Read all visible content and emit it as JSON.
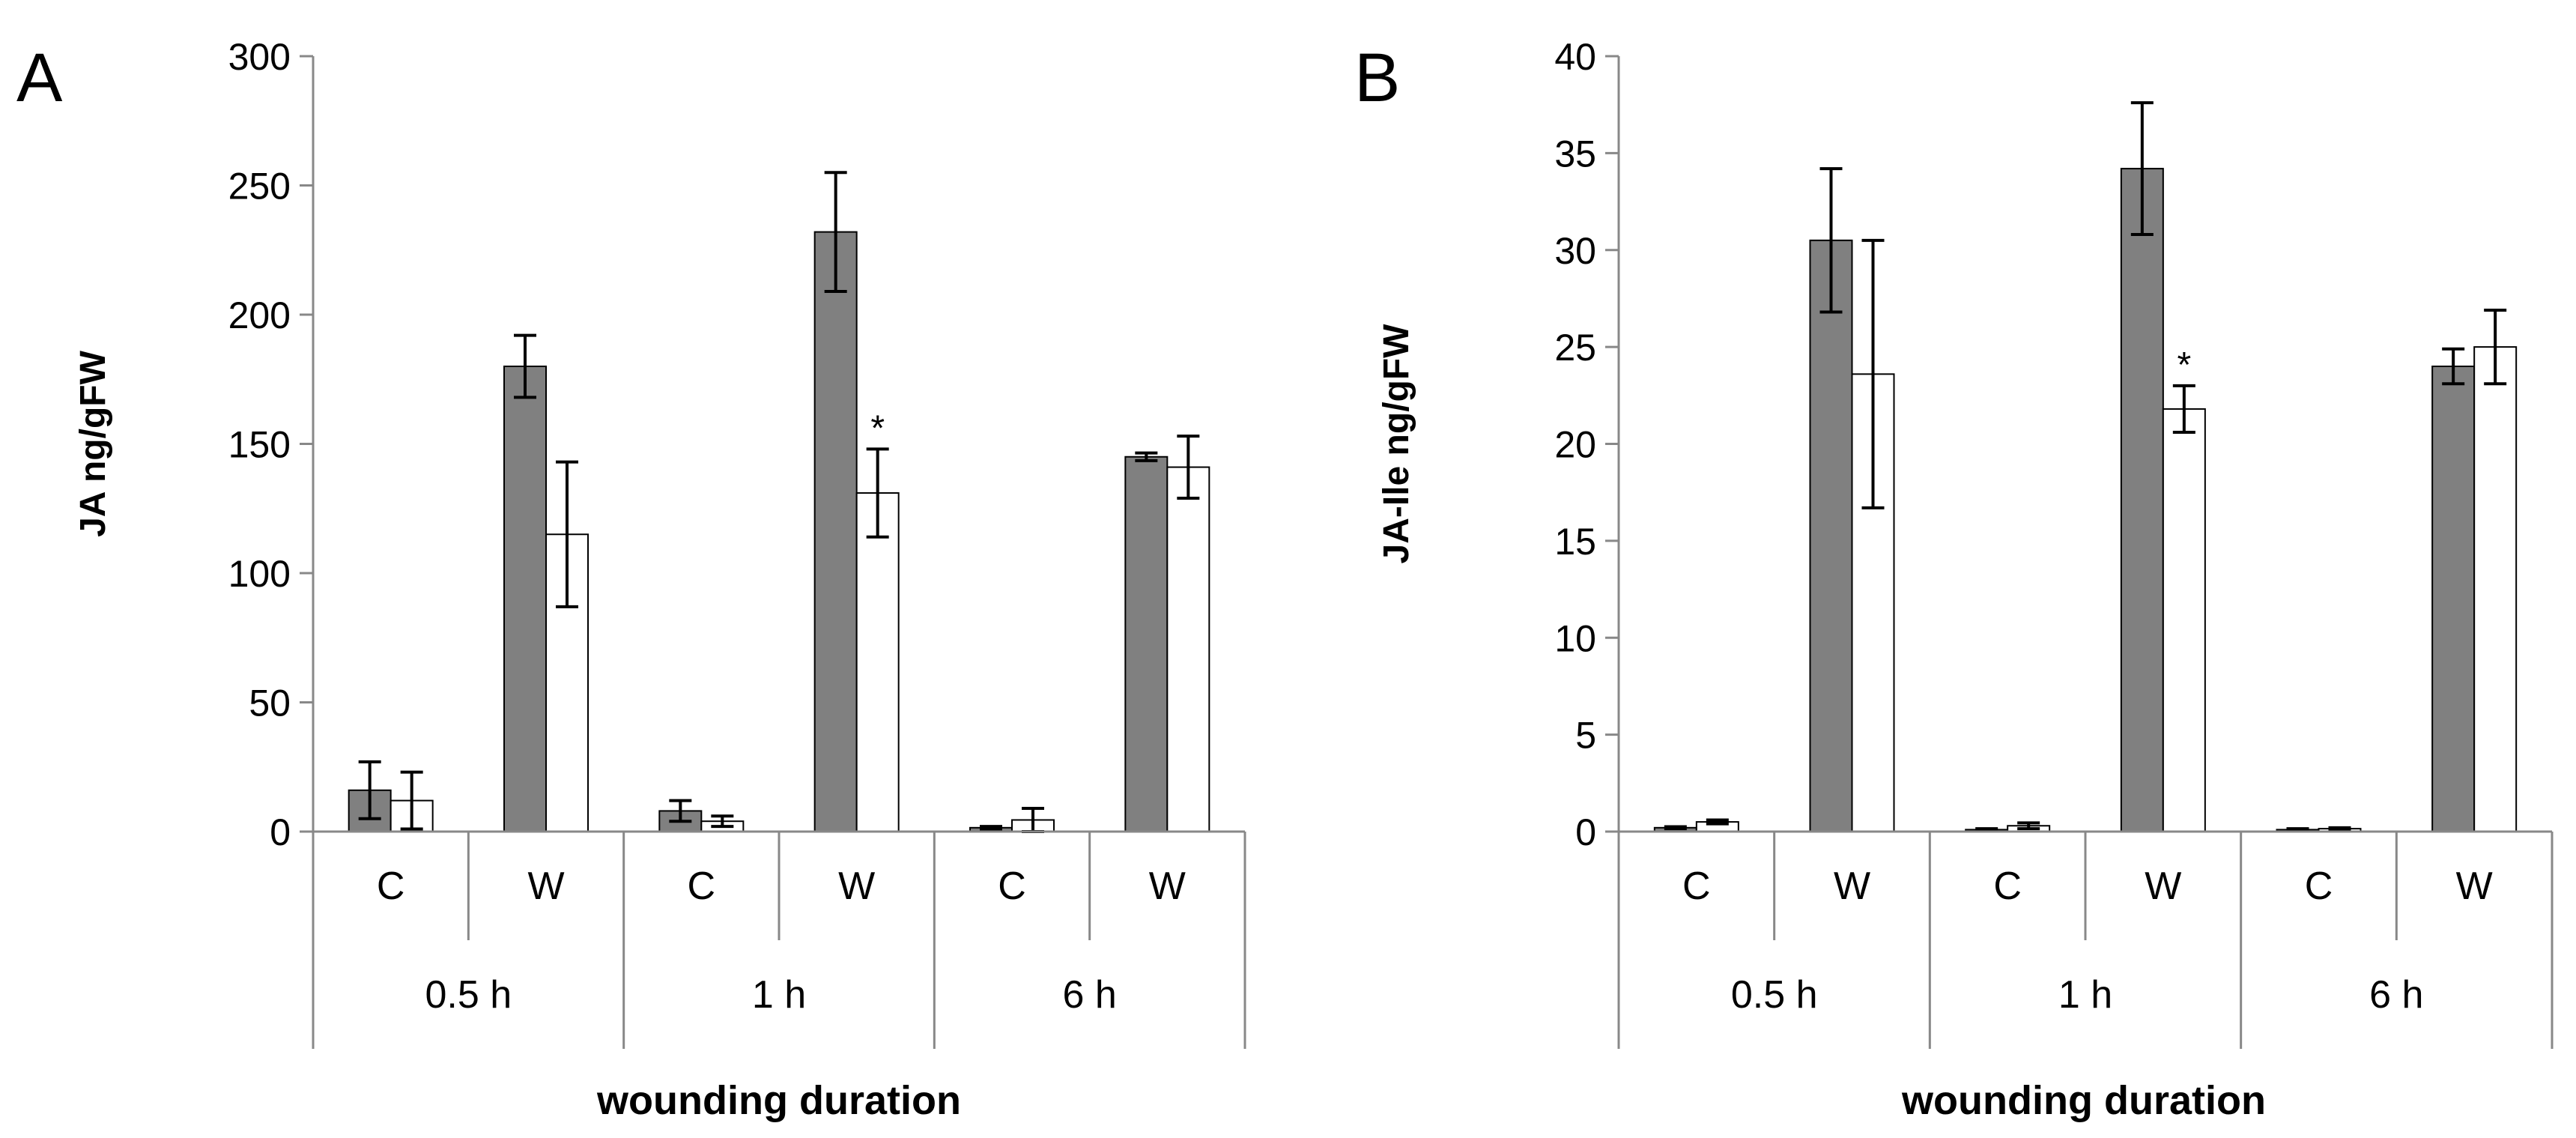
{
  "chart_data": [
    {
      "type": "bar",
      "panel_label": "A",
      "ylabel": "JA ng/gFW",
      "xlabel": "wounding duration",
      "ylim": [
        0,
        300
      ],
      "yticks": [
        0,
        50,
        100,
        150,
        200,
        250,
        300
      ],
      "groups": [
        "0.5 h",
        "1 h",
        "6 h"
      ],
      "categories": [
        "C",
        "W",
        "C",
        "W",
        "C",
        "W"
      ],
      "series": [
        {
          "color": "#808080",
          "values": [
            16,
            180,
            8,
            232,
            1.5,
            145
          ],
          "errors": [
            11,
            12,
            4,
            23,
            0.5,
            1.5
          ]
        },
        {
          "color": "#ffffff",
          "values": [
            12,
            115,
            4,
            131,
            4.5,
            141
          ],
          "errors": [
            11,
            28,
            2,
            17,
            4.5,
            12
          ]
        }
      ],
      "annotations": [
        {
          "text": "*",
          "category_index": 3,
          "series_index": 1
        }
      ]
    },
    {
      "type": "bar",
      "panel_label": "B",
      "ylabel": "JA-Ile ng/gFW",
      "xlabel": "wounding duration",
      "ylim": [
        0,
        40
      ],
      "yticks": [
        0,
        5,
        10,
        15,
        20,
        25,
        30,
        35,
        40
      ],
      "groups": [
        "0.5 h",
        "1 h",
        "6 h"
      ],
      "categories": [
        "C",
        "W",
        "C",
        "W",
        "C",
        "W"
      ],
      "series": [
        {
          "color": "#808080",
          "values": [
            0.2,
            30.5,
            0.1,
            34.2,
            0.1,
            24
          ],
          "errors": [
            0.05,
            3.7,
            0.05,
            3.4,
            0.05,
            0.9
          ]
        },
        {
          "color": "#ffffff",
          "values": [
            0.5,
            23.6,
            0.3,
            21.8,
            0.15,
            25
          ],
          "errors": [
            0.1,
            6.9,
            0.15,
            1.2,
            0.05,
            1.9
          ]
        }
      ],
      "annotations": [
        {
          "text": "*",
          "category_index": 3,
          "series_index": 1
        }
      ]
    }
  ]
}
